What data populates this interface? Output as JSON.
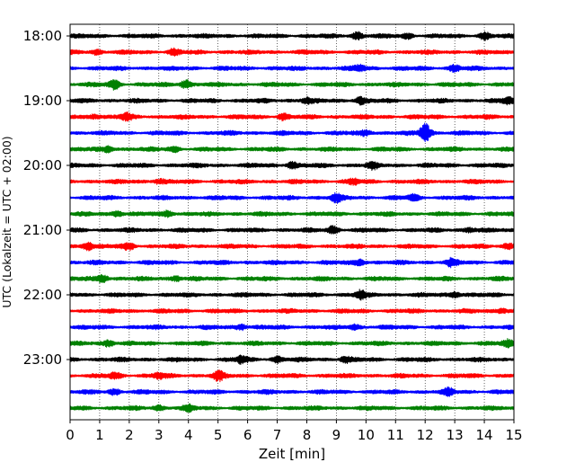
{
  "chart_data": {
    "type": "line",
    "title": "",
    "xlabel": "Zeit  [min]",
    "ylabel": "UTC (Lokalzeit = UTC + 02:00)",
    "xlim": [
      0,
      15
    ],
    "x_ticks": [
      0,
      1,
      2,
      3,
      4,
      5,
      6,
      7,
      8,
      9,
      10,
      11,
      12,
      13,
      14,
      15
    ],
    "y_tick_labels": [
      "18:00",
      "19:00",
      "20:00",
      "21:00",
      "22:00",
      "23:00"
    ],
    "minutes_per_trace": 15,
    "color_cycle": [
      "#000000",
      "#ff0000",
      "#0000ff",
      "#008000"
    ],
    "grid": "vertical dotted at each minute",
    "traces": [
      {
        "start": "18:00",
        "color": "#000000",
        "events": [
          {
            "t": 9.7,
            "amp": 1.6
          },
          {
            "t": 14.0,
            "amp": 1.5
          },
          {
            "t": 11.4,
            "amp": 1.0
          }
        ]
      },
      {
        "start": "18:15",
        "color": "#ff0000",
        "events": [
          {
            "t": 3.5,
            "amp": 1.2
          },
          {
            "t": 0.9,
            "amp": 1.0
          }
        ]
      },
      {
        "start": "18:30",
        "color": "#0000ff",
        "events": [
          {
            "t": 9.8,
            "amp": 1.3
          },
          {
            "t": 13.0,
            "amp": 1.3
          }
        ]
      },
      {
        "start": "18:45",
        "color": "#008000",
        "events": [
          {
            "t": 1.5,
            "amp": 2.0
          },
          {
            "t": 3.9,
            "amp": 2.0
          }
        ]
      },
      {
        "start": "19:00",
        "color": "#000000",
        "events": [
          {
            "t": 9.8,
            "amp": 1.6
          },
          {
            "t": 8.0,
            "amp": 1.3
          },
          {
            "t": 14.8,
            "amp": 1.4
          }
        ]
      },
      {
        "start": "19:15",
        "color": "#ff0000",
        "events": [
          {
            "t": 1.9,
            "amp": 1.5
          },
          {
            "t": 7.2,
            "amp": 1.3
          },
          {
            "t": 0.8,
            "amp": 1.1
          }
        ]
      },
      {
        "start": "19:30",
        "color": "#0000ff",
        "events": [
          {
            "t": 12.0,
            "amp": 4.5
          },
          {
            "t": 10.0,
            "amp": 1.3
          }
        ]
      },
      {
        "start": "19:45",
        "color": "#008000",
        "events": [
          {
            "t": 1.3,
            "amp": 1.2
          },
          {
            "t": 3.5,
            "amp": 1.2
          }
        ]
      },
      {
        "start": "20:00",
        "color": "#000000",
        "events": [
          {
            "t": 7.5,
            "amp": 1.5
          },
          {
            "t": 10.2,
            "amp": 1.3
          }
        ]
      },
      {
        "start": "20:15",
        "color": "#ff0000",
        "events": [
          {
            "t": 3.0,
            "amp": 1.1
          },
          {
            "t": 9.6,
            "amp": 1.1
          }
        ]
      },
      {
        "start": "20:30",
        "color": "#0000ff",
        "events": [
          {
            "t": 9.0,
            "amp": 1.8
          },
          {
            "t": 11.6,
            "amp": 1.2
          }
        ]
      },
      {
        "start": "20:45",
        "color": "#008000",
        "events": [
          {
            "t": 1.6,
            "amp": 1.4
          },
          {
            "t": 3.3,
            "amp": 1.4
          }
        ]
      },
      {
        "start": "21:00",
        "color": "#000000",
        "events": [
          {
            "t": 8.9,
            "amp": 1.8
          },
          {
            "t": 13.5,
            "amp": 1.0
          }
        ]
      },
      {
        "start": "21:15",
        "color": "#ff0000",
        "events": [
          {
            "t": 0.6,
            "amp": 1.9
          },
          {
            "t": 2.0,
            "amp": 1.4
          },
          {
            "t": 14.8,
            "amp": 1.3
          }
        ]
      },
      {
        "start": "21:30",
        "color": "#0000ff",
        "events": [
          {
            "t": 9.8,
            "amp": 1.4
          },
          {
            "t": 12.9,
            "amp": 1.5
          }
        ]
      },
      {
        "start": "21:45",
        "color": "#008000",
        "events": [
          {
            "t": 1.1,
            "amp": 1.8
          },
          {
            "t": 3.6,
            "amp": 1.2
          }
        ]
      },
      {
        "start": "22:00",
        "color": "#000000",
        "events": [
          {
            "t": 9.8,
            "amp": 1.8
          },
          {
            "t": 13.0,
            "amp": 1.4
          }
        ]
      },
      {
        "start": "22:15",
        "color": "#ff0000",
        "events": [
          {
            "t": 14.6,
            "amp": 1.2
          }
        ]
      },
      {
        "start": "22:30",
        "color": "#0000ff",
        "events": [
          {
            "t": 5.8,
            "amp": 1.3
          },
          {
            "t": 9.6,
            "amp": 1.0
          }
        ]
      },
      {
        "start": "22:45",
        "color": "#008000",
        "events": [
          {
            "t": 1.3,
            "amp": 1.5
          },
          {
            "t": 14.8,
            "amp": 1.4
          }
        ]
      },
      {
        "start": "23:00",
        "color": "#000000",
        "events": [
          {
            "t": 5.8,
            "amp": 1.5
          },
          {
            "t": 7.0,
            "amp": 1.3
          },
          {
            "t": 9.3,
            "amp": 1.2
          }
        ]
      },
      {
        "start": "23:15",
        "color": "#ff0000",
        "events": [
          {
            "t": 5.0,
            "amp": 2.0
          },
          {
            "t": 1.5,
            "amp": 1.3
          },
          {
            "t": 3.0,
            "amp": 1.2
          }
        ]
      },
      {
        "start": "23:30",
        "color": "#0000ff",
        "events": [
          {
            "t": 1.5,
            "amp": 1.3
          },
          {
            "t": 12.8,
            "amp": 1.3
          }
        ]
      },
      {
        "start": "23:45",
        "color": "#008000",
        "events": [
          {
            "t": 3.0,
            "amp": 1.1
          },
          {
            "t": 4.0,
            "amp": 1.1
          }
        ]
      }
    ]
  }
}
